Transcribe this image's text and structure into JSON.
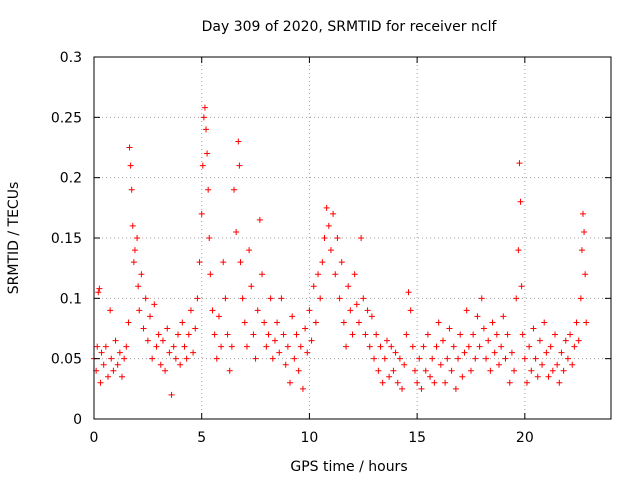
{
  "chart_data": {
    "type": "scatter",
    "title": "Day 309 of 2020, SRMTID for receiver nclf",
    "xlabel": "GPS time / hours",
    "ylabel": "SRMTID / TECUs",
    "xlim": [
      0,
      24
    ],
    "ylim": [
      0,
      0.3
    ],
    "x_ticks": [
      0,
      5,
      10,
      15,
      20
    ],
    "x_tick_labels": [
      "0",
      "5",
      "10",
      "15",
      "20"
    ],
    "y_ticks": [
      0,
      0.05,
      0.1,
      0.15,
      0.2,
      0.25,
      0.3
    ],
    "y_tick_labels": [
      "0",
      "0.05",
      "0.1",
      "0.15",
      "0.2",
      "0.25",
      "0.3"
    ],
    "grid": true,
    "marker": "+",
    "marker_color": "#ff0000",
    "series": [
      {
        "name": "SRMTID",
        "points": [
          [
            0.0,
            0.05
          ],
          [
            0.1,
            0.04
          ],
          [
            0.15,
            0.06
          ],
          [
            0.2,
            0.105
          ],
          [
            0.25,
            0.108
          ],
          [
            0.3,
            0.03
          ],
          [
            0.35,
            0.055
          ],
          [
            0.45,
            0.045
          ],
          [
            0.55,
            0.06
          ],
          [
            0.65,
            0.035
          ],
          [
            0.75,
            0.09
          ],
          [
            0.8,
            0.05
          ],
          [
            0.9,
            0.04
          ],
          [
            1.0,
            0.065
          ],
          [
            1.1,
            0.045
          ],
          [
            1.2,
            0.055
          ],
          [
            1.3,
            0.035
          ],
          [
            1.4,
            0.05
          ],
          [
            1.5,
            0.06
          ],
          [
            1.6,
            0.08
          ],
          [
            1.65,
            0.225
          ],
          [
            1.7,
            0.21
          ],
          [
            1.75,
            0.19
          ],
          [
            1.8,
            0.16
          ],
          [
            1.85,
            0.13
          ],
          [
            1.9,
            0.14
          ],
          [
            2.0,
            0.15
          ],
          [
            2.05,
            0.11
          ],
          [
            2.1,
            0.09
          ],
          [
            2.2,
            0.12
          ],
          [
            2.3,
            0.075
          ],
          [
            2.4,
            0.1
          ],
          [
            2.5,
            0.065
          ],
          [
            2.6,
            0.085
          ],
          [
            2.7,
            0.05
          ],
          [
            2.8,
            0.095
          ],
          [
            2.9,
            0.06
          ],
          [
            3.0,
            0.07
          ],
          [
            3.1,
            0.045
          ],
          [
            3.2,
            0.065
          ],
          [
            3.3,
            0.04
          ],
          [
            3.4,
            0.075
          ],
          [
            3.5,
            0.055
          ],
          [
            3.6,
            0.02
          ],
          [
            3.7,
            0.06
          ],
          [
            3.8,
            0.05
          ],
          [
            3.9,
            0.07
          ],
          [
            4.0,
            0.045
          ],
          [
            4.1,
            0.08
          ],
          [
            4.2,
            0.06
          ],
          [
            4.3,
            0.05
          ],
          [
            4.4,
            0.07
          ],
          [
            4.5,
            0.09
          ],
          [
            4.6,
            0.055
          ],
          [
            4.7,
            0.075
          ],
          [
            4.8,
            0.1
          ],
          [
            4.9,
            0.13
          ],
          [
            5.0,
            0.17
          ],
          [
            5.05,
            0.21
          ],
          [
            5.1,
            0.25
          ],
          [
            5.15,
            0.258
          ],
          [
            5.2,
            0.24
          ],
          [
            5.25,
            0.22
          ],
          [
            5.3,
            0.19
          ],
          [
            5.35,
            0.15
          ],
          [
            5.4,
            0.12
          ],
          [
            5.5,
            0.09
          ],
          [
            5.6,
            0.07
          ],
          [
            5.7,
            0.05
          ],
          [
            5.8,
            0.085
          ],
          [
            5.9,
            0.06
          ],
          [
            6.0,
            0.13
          ],
          [
            6.1,
            0.1
          ],
          [
            6.2,
            0.07
          ],
          [
            6.3,
            0.04
          ],
          [
            6.4,
            0.06
          ],
          [
            6.5,
            0.19
          ],
          [
            6.6,
            0.155
          ],
          [
            6.7,
            0.23
          ],
          [
            6.75,
            0.21
          ],
          [
            6.8,
            0.13
          ],
          [
            6.9,
            0.1
          ],
          [
            7.0,
            0.08
          ],
          [
            7.1,
            0.06
          ],
          [
            7.2,
            0.14
          ],
          [
            7.3,
            0.11
          ],
          [
            7.4,
            0.07
          ],
          [
            7.5,
            0.05
          ],
          [
            7.6,
            0.09
          ],
          [
            7.7,
            0.165
          ],
          [
            7.8,
            0.12
          ],
          [
            7.9,
            0.08
          ],
          [
            8.0,
            0.06
          ],
          [
            8.1,
            0.07
          ],
          [
            8.2,
            0.1
          ],
          [
            8.3,
            0.05
          ],
          [
            8.4,
            0.065
          ],
          [
            8.5,
            0.08
          ],
          [
            8.6,
            0.055
          ],
          [
            8.7,
            0.1
          ],
          [
            8.8,
            0.07
          ],
          [
            8.9,
            0.045
          ],
          [
            9.0,
            0.06
          ],
          [
            9.1,
            0.03
          ],
          [
            9.2,
            0.085
          ],
          [
            9.3,
            0.05
          ],
          [
            9.4,
            0.07
          ],
          [
            9.5,
            0.04
          ],
          [
            9.6,
            0.06
          ],
          [
            9.7,
            0.025
          ],
          [
            9.8,
            0.075
          ],
          [
            9.9,
            0.055
          ],
          [
            10.0,
            0.09
          ],
          [
            10.1,
            0.065
          ],
          [
            10.2,
            0.11
          ],
          [
            10.3,
            0.08
          ],
          [
            10.4,
            0.12
          ],
          [
            10.5,
            0.1
          ],
          [
            10.6,
            0.13
          ],
          [
            10.7,
            0.15
          ],
          [
            10.8,
            0.175
          ],
          [
            10.9,
            0.16
          ],
          [
            11.0,
            0.14
          ],
          [
            11.1,
            0.17
          ],
          [
            11.2,
            0.12
          ],
          [
            11.3,
            0.15
          ],
          [
            11.4,
            0.1
          ],
          [
            11.5,
            0.13
          ],
          [
            11.6,
            0.08
          ],
          [
            11.7,
            0.06
          ],
          [
            11.8,
            0.11
          ],
          [
            11.9,
            0.09
          ],
          [
            12.0,
            0.07
          ],
          [
            12.1,
            0.12
          ],
          [
            12.2,
            0.095
          ],
          [
            12.3,
            0.08
          ],
          [
            12.4,
            0.15
          ],
          [
            12.5,
            0.1
          ],
          [
            12.6,
            0.07
          ],
          [
            12.7,
            0.09
          ],
          [
            12.8,
            0.06
          ],
          [
            12.9,
            0.085
          ],
          [
            13.0,
            0.05
          ],
          [
            13.1,
            0.07
          ],
          [
            13.2,
            0.04
          ],
          [
            13.3,
            0.06
          ],
          [
            13.4,
            0.03
          ],
          [
            13.5,
            0.05
          ],
          [
            13.6,
            0.065
          ],
          [
            13.7,
            0.035
          ],
          [
            13.8,
            0.06
          ],
          [
            13.9,
            0.04
          ],
          [
            14.0,
            0.055
          ],
          [
            14.1,
            0.03
          ],
          [
            14.2,
            0.05
          ],
          [
            14.3,
            0.025
          ],
          [
            14.4,
            0.045
          ],
          [
            14.5,
            0.07
          ],
          [
            14.6,
            0.105
          ],
          [
            14.7,
            0.09
          ],
          [
            14.8,
            0.06
          ],
          [
            14.9,
            0.04
          ],
          [
            15.0,
            0.03
          ],
          [
            15.1,
            0.05
          ],
          [
            15.2,
            0.025
          ],
          [
            15.3,
            0.06
          ],
          [
            15.4,
            0.04
          ],
          [
            15.5,
            0.07
          ],
          [
            15.6,
            0.035
          ],
          [
            15.7,
            0.05
          ],
          [
            15.8,
            0.03
          ],
          [
            15.9,
            0.06
          ],
          [
            16.0,
            0.08
          ],
          [
            16.1,
            0.045
          ],
          [
            16.2,
            0.065
          ],
          [
            16.3,
            0.03
          ],
          [
            16.4,
            0.05
          ],
          [
            16.5,
            0.075
          ],
          [
            16.6,
            0.04
          ],
          [
            16.7,
            0.06
          ],
          [
            16.8,
            0.025
          ],
          [
            16.9,
            0.05
          ],
          [
            17.0,
            0.07
          ],
          [
            17.1,
            0.035
          ],
          [
            17.2,
            0.055
          ],
          [
            17.3,
            0.09
          ],
          [
            17.4,
            0.06
          ],
          [
            17.5,
            0.04
          ],
          [
            17.6,
            0.07
          ],
          [
            17.7,
            0.05
          ],
          [
            17.8,
            0.085
          ],
          [
            17.9,
            0.06
          ],
          [
            18.0,
            0.1
          ],
          [
            18.1,
            0.075
          ],
          [
            18.2,
            0.05
          ],
          [
            18.3,
            0.065
          ],
          [
            18.4,
            0.04
          ],
          [
            18.5,
            0.08
          ],
          [
            18.6,
            0.055
          ],
          [
            18.7,
            0.07
          ],
          [
            18.8,
            0.045
          ],
          [
            18.9,
            0.06
          ],
          [
            19.0,
            0.085
          ],
          [
            19.1,
            0.05
          ],
          [
            19.2,
            0.07
          ],
          [
            19.3,
            0.03
          ],
          [
            19.4,
            0.055
          ],
          [
            19.5,
            0.04
          ],
          [
            19.6,
            0.1
          ],
          [
            19.7,
            0.14
          ],
          [
            19.75,
            0.212
          ],
          [
            19.8,
            0.18
          ],
          [
            19.85,
            0.11
          ],
          [
            19.9,
            0.07
          ],
          [
            20.0,
            0.05
          ],
          [
            20.1,
            0.03
          ],
          [
            20.2,
            0.06
          ],
          [
            20.3,
            0.04
          ],
          [
            20.4,
            0.075
          ],
          [
            20.5,
            0.05
          ],
          [
            20.6,
            0.035
          ],
          [
            20.7,
            0.065
          ],
          [
            20.8,
            0.045
          ],
          [
            20.9,
            0.08
          ],
          [
            21.0,
            0.055
          ],
          [
            21.1,
            0.035
          ],
          [
            21.2,
            0.06
          ],
          [
            21.3,
            0.04
          ],
          [
            21.4,
            0.07
          ],
          [
            21.5,
            0.045
          ],
          [
            21.6,
            0.03
          ],
          [
            21.7,
            0.055
          ],
          [
            21.8,
            0.04
          ],
          [
            21.9,
            0.065
          ],
          [
            22.0,
            0.05
          ],
          [
            22.1,
            0.07
          ],
          [
            22.2,
            0.045
          ],
          [
            22.3,
            0.06
          ],
          [
            22.4,
            0.08
          ],
          [
            22.5,
            0.065
          ],
          [
            22.6,
            0.1
          ],
          [
            22.65,
            0.14
          ],
          [
            22.7,
            0.17
          ],
          [
            22.75,
            0.155
          ],
          [
            22.8,
            0.12
          ],
          [
            22.85,
            0.08
          ]
        ]
      }
    ]
  }
}
